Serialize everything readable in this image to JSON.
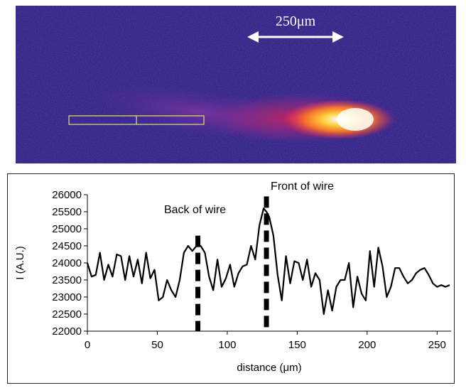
{
  "image": {
    "scale_label": "250μm",
    "colors": {
      "background": "#2a1b7c",
      "hot": "#ffffff",
      "warm": "#ffb020",
      "mid": "#e02050",
      "cool": "#7a2a9a",
      "scale_arrow": "#ffffff",
      "roi_box": "#e8e070"
    }
  },
  "chart_data": {
    "type": "line",
    "title": "",
    "xlabel": "distance (μm)",
    "ylabel": "I (A.U.)",
    "xlim": [
      0,
      260
    ],
    "ylim": [
      22000,
      26000
    ],
    "xticks": [
      0,
      50,
      100,
      150,
      200,
      250
    ],
    "yticks": [
      22000,
      22500,
      23000,
      23500,
      24000,
      24500,
      25000,
      25500,
      26000
    ],
    "grid": false,
    "line_color": "#000000",
    "series": [
      {
        "x": [
          0,
          3,
          6,
          9,
          12,
          15,
          18,
          21,
          24,
          27,
          30,
          33,
          36,
          39,
          42,
          45,
          48,
          51,
          54,
          57,
          60,
          63,
          66,
          69,
          72,
          75,
          78,
          81,
          84,
          87,
          90,
          93,
          96,
          99,
          102,
          105,
          108,
          111,
          114,
          117,
          120,
          123,
          126,
          128,
          130,
          133,
          136,
          139,
          142,
          145,
          148,
          151,
          154,
          157,
          160,
          163,
          166,
          169,
          172,
          175,
          178,
          181,
          184,
          187,
          190,
          193,
          196,
          199,
          202,
          205,
          208,
          211,
          214,
          217,
          220,
          223,
          226,
          229,
          232,
          235,
          238,
          241,
          244,
          247,
          250,
          253,
          256,
          259
        ],
        "y": [
          24000,
          23600,
          23650,
          24300,
          23500,
          23950,
          23600,
          24250,
          24200,
          23500,
          24200,
          23600,
          24100,
          23400,
          24300,
          23550,
          23800,
          22900,
          23000,
          23500,
          23200,
          23000,
          23500,
          24300,
          24500,
          24350,
          24500,
          24500,
          24300,
          23600,
          23200,
          24100,
          23300,
          23550,
          23950,
          23300,
          23700,
          23900,
          23950,
          24500,
          24100,
          25100,
          25600,
          25500,
          25350,
          24800,
          23650,
          22900,
          24200,
          23400,
          24050,
          24000,
          23500,
          24100,
          23300,
          23700,
          23500,
          22500,
          23200,
          22600,
          23300,
          23500,
          23500,
          24000,
          22700,
          23600,
          23100,
          22900,
          24350,
          23300,
          24450,
          23900,
          23000,
          23300,
          23850,
          23850,
          23600,
          23400,
          23500,
          23700,
          23800,
          23850,
          23650,
          23400,
          23300,
          23350,
          23300,
          23350
        ]
      }
    ],
    "annotations": [
      {
        "text": "Back of wire",
        "x": 79
      },
      {
        "text": "Front of wire",
        "x": 128
      }
    ]
  }
}
